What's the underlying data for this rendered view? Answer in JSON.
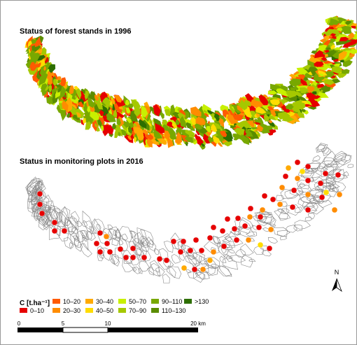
{
  "map": {
    "title_1996": "Status of forest stands in 1996",
    "title_2016": "Status in monitoring plots in 2016",
    "legend": {
      "title": "C [t.ha⁻¹]",
      "classes": [
        {
          "label": "0–10",
          "color": "#e60000"
        },
        {
          "label": "10–20",
          "color": "#ff5a00"
        },
        {
          "label": "20–30",
          "color": "#ff8c00"
        },
        {
          "label": "30–40",
          "color": "#ffaa00"
        },
        {
          "label": "40–50",
          "color": "#ffdc00"
        },
        {
          "label": "50–70",
          "color": "#c8f000"
        },
        {
          "label": "70–90",
          "color": "#a5c800"
        },
        {
          "label": "90–110",
          "color": "#78a800"
        },
        {
          "label": "110–130",
          "color": "#5a8c00"
        },
        {
          "label": ">130",
          "color": "#2d6e00"
        }
      ]
    },
    "scale_bar": {
      "labels": [
        "0",
        "5",
        "10",
        "20 km"
      ]
    },
    "north": "N"
  }
}
